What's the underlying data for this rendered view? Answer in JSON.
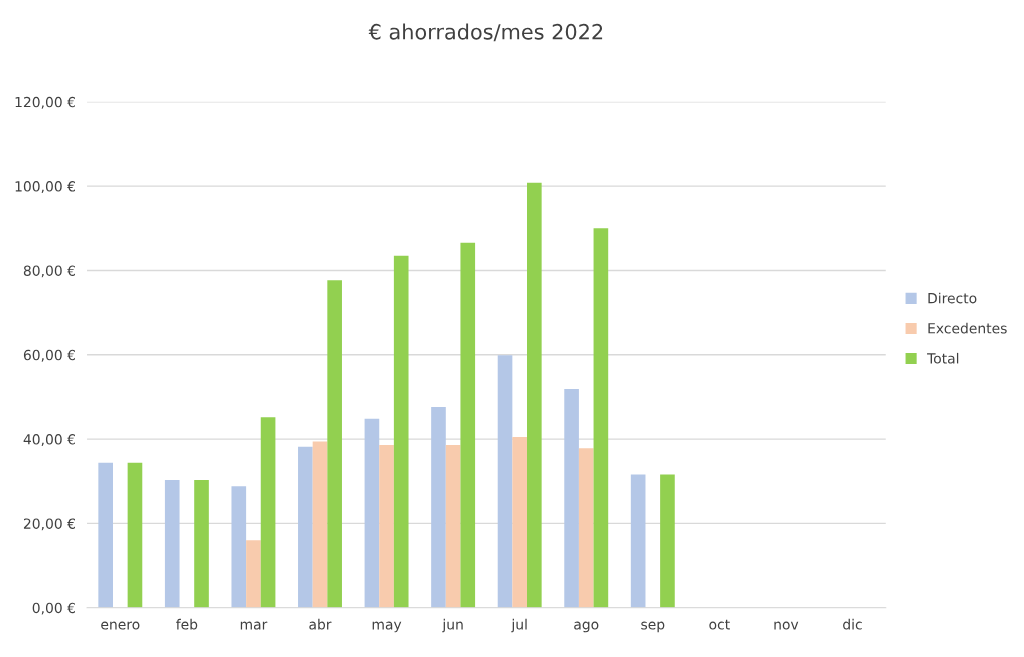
{
  "chart_data": {
    "type": "bar",
    "title": "€ ahorrados/mes 2022",
    "categories": [
      "enero",
      "feb",
      "mar",
      "abr",
      "may",
      "jun",
      "jul",
      "ago",
      "sep",
      "oct",
      "nov",
      "dic"
    ],
    "series": [
      {
        "name": "Directo",
        "color": "#b4c7e7",
        "values": [
          34.4,
          30.3,
          28.8,
          38.2,
          44.8,
          47.6,
          59.9,
          51.9,
          31.6,
          null,
          null,
          null
        ]
      },
      {
        "name": "Excedentes",
        "color": "#f8cbad",
        "values": [
          null,
          null,
          16.0,
          39.4,
          38.6,
          38.6,
          40.5,
          37.8,
          null,
          null,
          null,
          null
        ]
      },
      {
        "name": "Total",
        "color": "#92d050",
        "values": [
          34.4,
          30.3,
          45.2,
          77.7,
          83.5,
          86.6,
          100.8,
          90.0,
          31.6,
          null,
          null,
          null
        ]
      }
    ],
    "ylim": [
      0,
      120
    ],
    "yticks": [
      {
        "value": 0,
        "label": "0,00 €"
      },
      {
        "value": 20,
        "label": "20,00 €"
      },
      {
        "value": 40,
        "label": "40,00 €"
      },
      {
        "value": 60,
        "label": "60,00 €"
      },
      {
        "value": 80,
        "label": "80,00 €"
      },
      {
        "value": 100,
        "label": "100,00 €"
      },
      {
        "value": 120,
        "label": "120,00 €"
      }
    ],
    "grid": "y",
    "legend": "right"
  }
}
